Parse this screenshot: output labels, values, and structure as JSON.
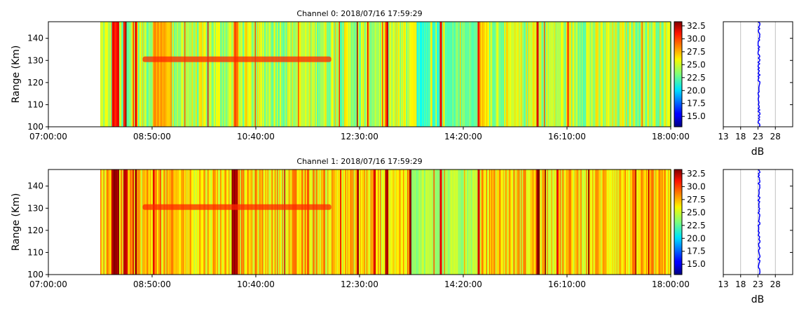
{
  "chart_data": [
    {
      "type": "heatmap",
      "title": "Channel 0: 2018/07/16 17:59:29",
      "ylabel": "Range (Km)",
      "xlabel": "",
      "x_start": "07:00:00",
      "x_end": "18:00:00",
      "x_ticks": [
        "07:00:00",
        "08:50:00",
        "10:40:00",
        "12:30:00",
        "14:20:00",
        "16:10:00",
        "18:00:00"
      ],
      "y_ticks": [
        "100",
        "110",
        "120",
        "130",
        "140"
      ],
      "ylim": [
        100,
        147.5
      ],
      "data_start": "07:55:00",
      "colorbar_ticks": [
        "15.0",
        "17.5",
        "20.0",
        "22.5",
        "25.0",
        "27.5",
        "30.0",
        "32.5"
      ],
      "colorbar_range": [
        13.0,
        33.3
      ],
      "colormap": "jet",
      "grid": false,
      "background_level": 24.3,
      "vertical_streaks": [
        {
          "from": "08:07:00",
          "to": "08:14:00",
          "value": 30.5
        },
        {
          "from": "08:19:00",
          "to": "08:22:00",
          "value": 30.0
        },
        {
          "from": "08:31:00",
          "to": "08:33:00",
          "value": 31.5
        },
        {
          "from": "08:50:00",
          "to": "09:10:00",
          "value": 27.5
        },
        {
          "from": "10:16:00",
          "to": "10:21:00",
          "value": 29.0
        },
        {
          "from": "12:26:00",
          "to": "12:28:00",
          "value": 32.0
        },
        {
          "from": "12:57:00",
          "to": "12:59:00",
          "value": 29.0
        },
        {
          "from": "13:22:00",
          "to": "13:30:00",
          "value": 25.5
        },
        {
          "from": "13:30:00",
          "to": "13:55:00",
          "value": 21.5
        },
        {
          "from": "13:55:00",
          "to": "13:57:00",
          "value": 31.0
        },
        {
          "from": "14:00:00",
          "to": "14:35:00",
          "value": 23.0
        },
        {
          "from": "14:35:00",
          "to": "14:37:00",
          "value": 30.5
        },
        {
          "from": "14:37:00",
          "to": "14:47:00",
          "value": 26.5
        },
        {
          "from": "15:37:00",
          "to": "15:39:00",
          "value": 31.0
        }
      ],
      "echo_layer": {
        "range_km": 130.5,
        "from": "08:40:00",
        "to": "12:00:00",
        "value": 30.0
      },
      "profile": {
        "xlabel": "dB",
        "x_ticks": [
          "13",
          "18",
          "23",
          "28"
        ],
        "xlim": [
          13,
          33
        ],
        "mean_db": 23.3,
        "line_color": "#0000ff"
      }
    },
    {
      "type": "heatmap",
      "title": "Channel 1: 2018/07/16 17:59:29",
      "ylabel": "Range (Km)",
      "xlabel": "",
      "x_start": "07:00:00",
      "x_end": "18:00:00",
      "x_ticks": [
        "07:00:00",
        "08:50:00",
        "10:40:00",
        "12:30:00",
        "14:20:00",
        "16:10:00",
        "18:00:00"
      ],
      "y_ticks": [
        "100",
        "110",
        "120",
        "130",
        "140"
      ],
      "ylim": [
        100,
        147.5
      ],
      "data_start": "07:55:00",
      "colorbar_ticks": [
        "15.0",
        "17.5",
        "20.0",
        "22.5",
        "25.0",
        "27.5",
        "30.0",
        "32.5"
      ],
      "colorbar_range": [
        13.0,
        33.3
      ],
      "colormap": "jet",
      "grid": false,
      "background_level": 26.5,
      "vertical_streaks": [
        {
          "from": "08:07:00",
          "to": "08:14:00",
          "value": 33.0
        },
        {
          "from": "08:19:00",
          "to": "08:23:00",
          "value": 32.5
        },
        {
          "from": "08:31:00",
          "to": "08:33:00",
          "value": 32.5
        },
        {
          "from": "08:50:00",
          "to": "08:52:00",
          "value": 30.5
        },
        {
          "from": "10:14:00",
          "to": "10:21:00",
          "value": 33.0
        },
        {
          "from": "12:26:00",
          "to": "12:29:00",
          "value": 32.0
        },
        {
          "from": "12:44:00",
          "to": "12:47:00",
          "value": 31.0
        },
        {
          "from": "12:57:00",
          "to": "13:00:00",
          "value": 32.0
        },
        {
          "from": "13:22:00",
          "to": "13:25:00",
          "value": 33.0
        },
        {
          "from": "13:25:00",
          "to": "14:35:00",
          "value": 24.0
        },
        {
          "from": "13:55:00",
          "to": "13:57:00",
          "value": 31.0
        },
        {
          "from": "14:35:00",
          "to": "14:37:00",
          "value": 31.0
        },
        {
          "from": "15:37:00",
          "to": "15:40:00",
          "value": 32.5
        },
        {
          "from": "15:58:00",
          "to": "16:00:00",
          "value": 31.0
        }
      ],
      "echo_layer": {
        "range_km": 130.5,
        "from": "08:40:00",
        "to": "12:00:00",
        "value": 30.0
      },
      "profile": {
        "xlabel": "dB",
        "x_ticks": [
          "13",
          "18",
          "23",
          "28"
        ],
        "xlim": [
          13,
          33
        ],
        "mean_db": 23.3,
        "line_color": "#0000ff"
      }
    }
  ]
}
